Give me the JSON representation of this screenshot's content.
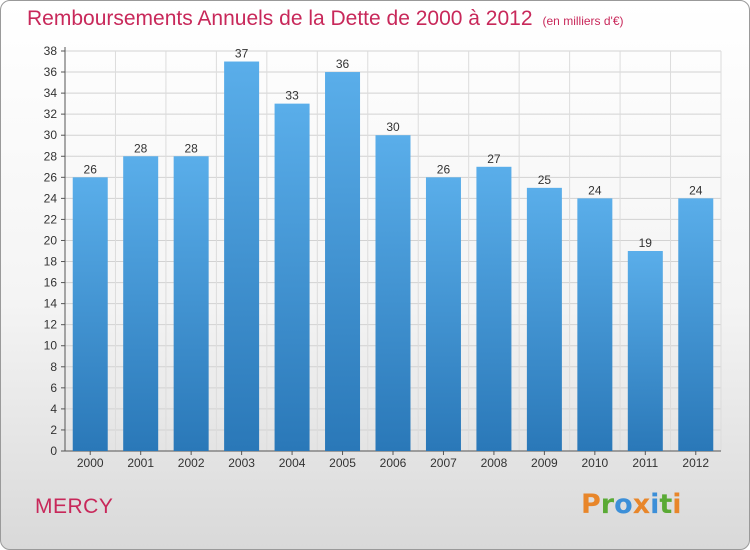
{
  "header": {
    "title": "Remboursements Annuels de la Dette de 2000 à 2012",
    "subtitle": "(en milliers d'€)"
  },
  "footer": {
    "city": "MERCY",
    "logo": "Proxiti",
    "logo_colors": [
      "#e8862a",
      "#5aaa35",
      "#3c8fd8",
      "#e8862a",
      "#3c8fd8",
      "#5aaa35",
      "#e8862a"
    ]
  },
  "chart_data": {
    "type": "bar",
    "categories": [
      "2000",
      "2001",
      "2002",
      "2003",
      "2004",
      "2005",
      "2006",
      "2007",
      "2008",
      "2009",
      "2010",
      "2011",
      "2012"
    ],
    "values": [
      26,
      28,
      28,
      37,
      33,
      36,
      30,
      26,
      27,
      25,
      24,
      19,
      24
    ],
    "ylim": [
      0,
      38
    ],
    "yticks": [
      0,
      2,
      4,
      6,
      8,
      10,
      12,
      14,
      16,
      18,
      20,
      22,
      24,
      26,
      28,
      30,
      32,
      34,
      36,
      38
    ],
    "grid": true,
    "bar_color_top": "#5aaeea",
    "bar_color_bottom": "#2a78b8"
  }
}
